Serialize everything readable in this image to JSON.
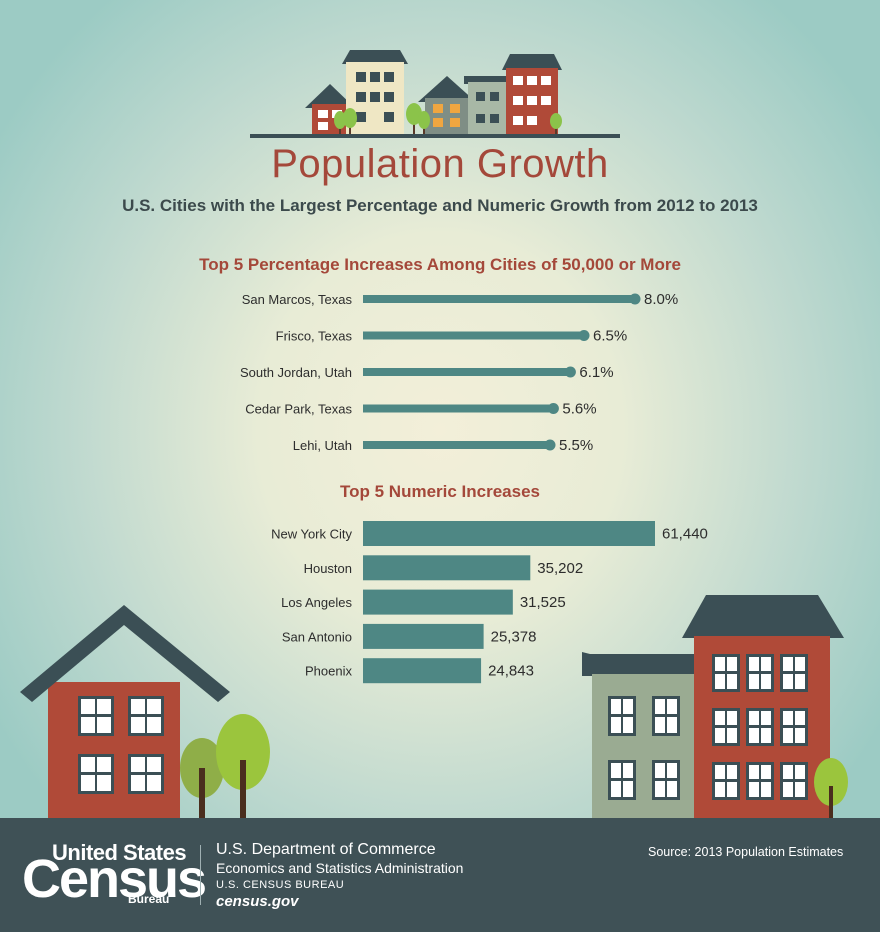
{
  "title": "Population Growth",
  "subtitle": "U.S. Cities with the Largest Percentage and Numeric Growth from 2012 to 2013",
  "colors": {
    "bar": "#4e8784",
    "accent": "#a4483a",
    "footer": "#3f5156",
    "brick": "#b04a38",
    "roof": "#3b4f55",
    "tree": "#8bc34a"
  },
  "chart_data": [
    {
      "type": "bar",
      "title": "Top 5 Percentage Increases Among Cities of 50,000 or More",
      "categories": [
        "San Marcos, Texas",
        "Frisco, Texas",
        "South Jordan, Utah",
        "Cedar Park, Texas",
        "Lehi, Utah"
      ],
      "values": [
        8.0,
        6.5,
        6.1,
        5.6,
        5.5
      ],
      "labels": [
        "8.0%",
        "6.5%",
        "6.1%",
        "5.6%",
        "5.5%"
      ],
      "orientation": "horizontal",
      "style": "lollipop"
    },
    {
      "type": "bar",
      "title": "Top 5 Numeric Increases",
      "categories": [
        "New York City",
        "Houston",
        "Los Angeles",
        "San Antonio",
        "Phoenix"
      ],
      "values": [
        61440,
        35202,
        31525,
        25378,
        24843
      ],
      "labels": [
        "61,440",
        "35,202",
        "31,525",
        "25,378",
        "24,843"
      ],
      "orientation": "horizontal"
    }
  ],
  "footer": {
    "logo_line1": "United States",
    "logo_line2": "Census",
    "logo_line3": "Bureau",
    "dept": "U.S. Department of Commerce",
    "esa": "Economics and Statistics Administration",
    "bureau": "U.S. CENSUS BUREAU",
    "site": "census.gov",
    "source": "Source: 2013 Population Estimates"
  }
}
